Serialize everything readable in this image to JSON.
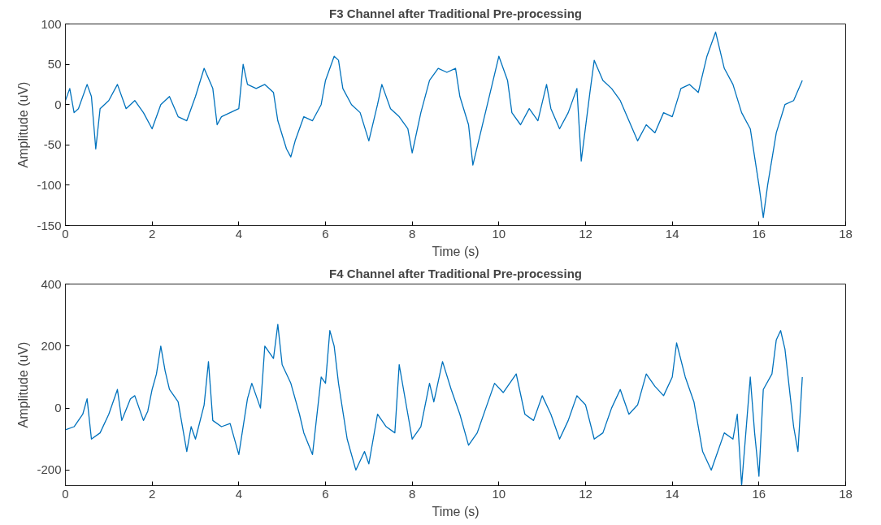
{
  "chart_data": [
    {
      "type": "line",
      "title": "F3 Channel after Traditional Pre-processing",
      "xlabel": "Time (s)",
      "ylabel": "Amplitude (uV)",
      "xlim": [
        0,
        18
      ],
      "ylim": [
        -150,
        100
      ],
      "xticks": [
        0,
        2,
        4,
        6,
        8,
        10,
        12,
        14,
        16,
        18
      ],
      "yticks": [
        -150,
        -100,
        -50,
        0,
        50,
        100
      ],
      "grid": false,
      "x": [
        0,
        0.1,
        0.2,
        0.3,
        0.5,
        0.6,
        0.7,
        0.8,
        0.9,
        1.0,
        1.2,
        1.4,
        1.6,
        1.8,
        2.0,
        2.2,
        2.4,
        2.6,
        2.8,
        3.0,
        3.2,
        3.4,
        3.5,
        3.6,
        3.8,
        4.0,
        4.1,
        4.2,
        4.4,
        4.6,
        4.8,
        4.9,
        5.1,
        5.2,
        5.3,
        5.5,
        5.7,
        5.9,
        6.0,
        6.2,
        6.3,
        6.4,
        6.6,
        6.8,
        7.0,
        7.2,
        7.3,
        7.5,
        7.7,
        7.9,
        8.0,
        8.2,
        8.4,
        8.6,
        8.8,
        9.0,
        9.1,
        9.3,
        9.4,
        9.6,
        9.8,
        10.0,
        10.2,
        10.3,
        10.5,
        10.7,
        10.9,
        11.1,
        11.2,
        11.4,
        11.6,
        11.8,
        11.9,
        12.1,
        12.2,
        12.4,
        12.6,
        12.8,
        13.0,
        13.2,
        13.4,
        13.6,
        13.8,
        14.0,
        14.2,
        14.4,
        14.6,
        14.8,
        15.0,
        15.2,
        15.4,
        15.6,
        15.8,
        16.0,
        16.1,
        16.2,
        16.4,
        16.6,
        16.8,
        17.0
      ],
      "series": [
        {
          "color": "#0072bd",
          "values": [
            5,
            20,
            -10,
            -5,
            25,
            10,
            -55,
            -5,
            0,
            5,
            25,
            -5,
            5,
            -10,
            -30,
            0,
            10,
            -15,
            -20,
            10,
            45,
            20,
            -25,
            -15,
            -10,
            -5,
            50,
            25,
            20,
            25,
            15,
            -20,
            -55,
            -65,
            -45,
            -15,
            -20,
            0,
            30,
            60,
            55,
            20,
            0,
            -10,
            -45,
            0,
            25,
            -5,
            -15,
            -30,
            -60,
            -10,
            30,
            45,
            40,
            45,
            10,
            -25,
            -75,
            -30,
            15,
            60,
            30,
            -10,
            -25,
            -5,
            -20,
            25,
            -5,
            -30,
            -10,
            20,
            -70,
            15,
            55,
            30,
            20,
            5,
            -20,
            -45,
            -25,
            -35,
            -10,
            -15,
            20,
            25,
            15,
            60,
            90,
            45,
            25,
            -10,
            -30,
            -100,
            -140,
            -100,
            -35,
            0,
            5,
            30
          ]
        }
      ]
    },
    {
      "type": "line",
      "title": "F4 Channel after Traditional Pre-processing",
      "xlabel": "Time (s)",
      "ylabel": "Amplitude (uV)",
      "xlim": [
        0,
        18
      ],
      "ylim": [
        -250,
        400
      ],
      "xticks": [
        0,
        2,
        4,
        6,
        8,
        10,
        12,
        14,
        16,
        18
      ],
      "yticks": [
        -200,
        0,
        200,
        400
      ],
      "grid": false,
      "x": [
        0,
        0.2,
        0.4,
        0.5,
        0.6,
        0.8,
        1.0,
        1.2,
        1.3,
        1.5,
        1.6,
        1.8,
        1.9,
        2.0,
        2.1,
        2.2,
        2.3,
        2.4,
        2.6,
        2.8,
        2.9,
        3.0,
        3.2,
        3.3,
        3.4,
        3.6,
        3.8,
        4.0,
        4.2,
        4.3,
        4.5,
        4.6,
        4.8,
        4.9,
        5.0,
        5.2,
        5.4,
        5.5,
        5.7,
        5.9,
        6.0,
        6.1,
        6.2,
        6.3,
        6.5,
        6.7,
        6.9,
        7.0,
        7.2,
        7.4,
        7.6,
        7.7,
        7.9,
        8.0,
        8.2,
        8.4,
        8.5,
        8.7,
        8.9,
        9.1,
        9.3,
        9.5,
        9.7,
        9.9,
        10.1,
        10.4,
        10.6,
        10.8,
        11.0,
        11.2,
        11.4,
        11.6,
        11.8,
        12.0,
        12.2,
        12.4,
        12.6,
        12.8,
        13.0,
        13.2,
        13.4,
        13.6,
        13.8,
        14.0,
        14.1,
        14.3,
        14.5,
        14.7,
        14.9,
        15.0,
        15.2,
        15.4,
        15.5,
        15.6,
        15.8,
        15.9,
        16.0,
        16.1,
        16.3,
        16.4,
        16.5,
        16.6,
        16.8,
        16.9,
        17.0
      ],
      "series": [
        {
          "color": "#0072bd",
          "values": [
            -70,
            -60,
            -20,
            30,
            -100,
            -80,
            -20,
            60,
            -40,
            30,
            40,
            -40,
            -10,
            60,
            110,
            200,
            120,
            60,
            20,
            -140,
            -60,
            -100,
            10,
            150,
            -40,
            -60,
            -50,
            -150,
            30,
            80,
            0,
            200,
            160,
            270,
            140,
            80,
            -20,
            -80,
            -150,
            100,
            80,
            250,
            200,
            80,
            -100,
            -200,
            -140,
            -180,
            -20,
            -60,
            -80,
            140,
            -20,
            -100,
            -60,
            80,
            20,
            150,
            60,
            -20,
            -120,
            -80,
            0,
            80,
            50,
            110,
            -20,
            -40,
            40,
            -20,
            -100,
            -40,
            40,
            10,
            -100,
            -80,
            0,
            60,
            -20,
            10,
            110,
            70,
            40,
            100,
            210,
            100,
            20,
            -140,
            -200,
            -160,
            -80,
            -100,
            -20,
            -250,
            100,
            -80,
            -220,
            60,
            110,
            220,
            250,
            190,
            -60,
            -140,
            100
          ]
        }
      ]
    }
  ]
}
